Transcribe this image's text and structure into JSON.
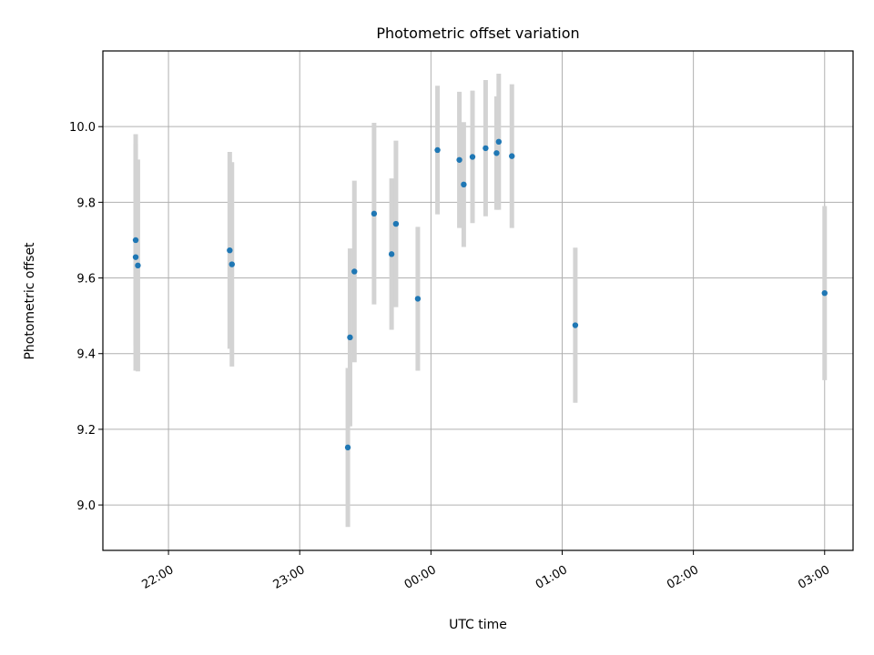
{
  "chart_data": {
    "type": "scatter",
    "title": "Photometric offset variation",
    "xlabel": "UTC time",
    "ylabel": "Photometric offset",
    "x_ticks": [
      "22:00",
      "23:00",
      "00:00",
      "01:00",
      "02:00",
      "03:00"
    ],
    "x_tick_times": [
      "22:00",
      "23:00",
      "24:00",
      "25:00",
      "26:00",
      "27:00"
    ],
    "x_range": [
      "21:30",
      "27:13"
    ],
    "y_ticks": [
      "9.0",
      "9.2",
      "9.4",
      "9.6",
      "9.8",
      "10.0"
    ],
    "y_tick_values": [
      9.0,
      9.2,
      9.4,
      9.6,
      9.8,
      10.0
    ],
    "ylim": [
      8.88,
      10.2
    ],
    "grid": true,
    "colors": {
      "point": "#1f77b4",
      "errorbar": "#d3d3d3",
      "grid": "#b0b0b0"
    },
    "points": [
      {
        "x": "21:45",
        "y": 9.7,
        "err": 0.28
      },
      {
        "x": "21:45",
        "y": 9.655,
        "err": 0.3
      },
      {
        "x": "21:46",
        "y": 9.633,
        "err": 0.28
      },
      {
        "x": "22:28",
        "y": 9.673,
        "err": 0.26
      },
      {
        "x": "22:29",
        "y": 9.636,
        "err": 0.27
      },
      {
        "x": "23:22",
        "y": 9.152,
        "err": 0.21
      },
      {
        "x": "23:23",
        "y": 9.443,
        "err": 0.235
      },
      {
        "x": "23:25",
        "y": 9.617,
        "err": 0.24
      },
      {
        "x": "23:34",
        "y": 9.77,
        "err": 0.24
      },
      {
        "x": "23:42",
        "y": 9.663,
        "err": 0.2
      },
      {
        "x": "23:44",
        "y": 9.743,
        "err": 0.22
      },
      {
        "x": "23:54",
        "y": 9.545,
        "err": 0.19
      },
      {
        "x": "24:03",
        "y": 9.938,
        "err": 0.17
      },
      {
        "x": "24:13",
        "y": 9.912,
        "err": 0.18
      },
      {
        "x": "24:15",
        "y": 9.847,
        "err": 0.165
      },
      {
        "x": "24:19",
        "y": 9.92,
        "err": 0.175
      },
      {
        "x": "24:25",
        "y": 9.943,
        "err": 0.18
      },
      {
        "x": "24:30",
        "y": 9.93,
        "err": 0.15
      },
      {
        "x": "24:31",
        "y": 9.96,
        "err": 0.18
      },
      {
        "x": "24:37",
        "y": 9.922,
        "err": 0.19
      },
      {
        "x": "25:06",
        "y": 9.475,
        "err": 0.205
      },
      {
        "x": "27:00",
        "y": 9.56,
        "err": 0.23
      }
    ]
  }
}
